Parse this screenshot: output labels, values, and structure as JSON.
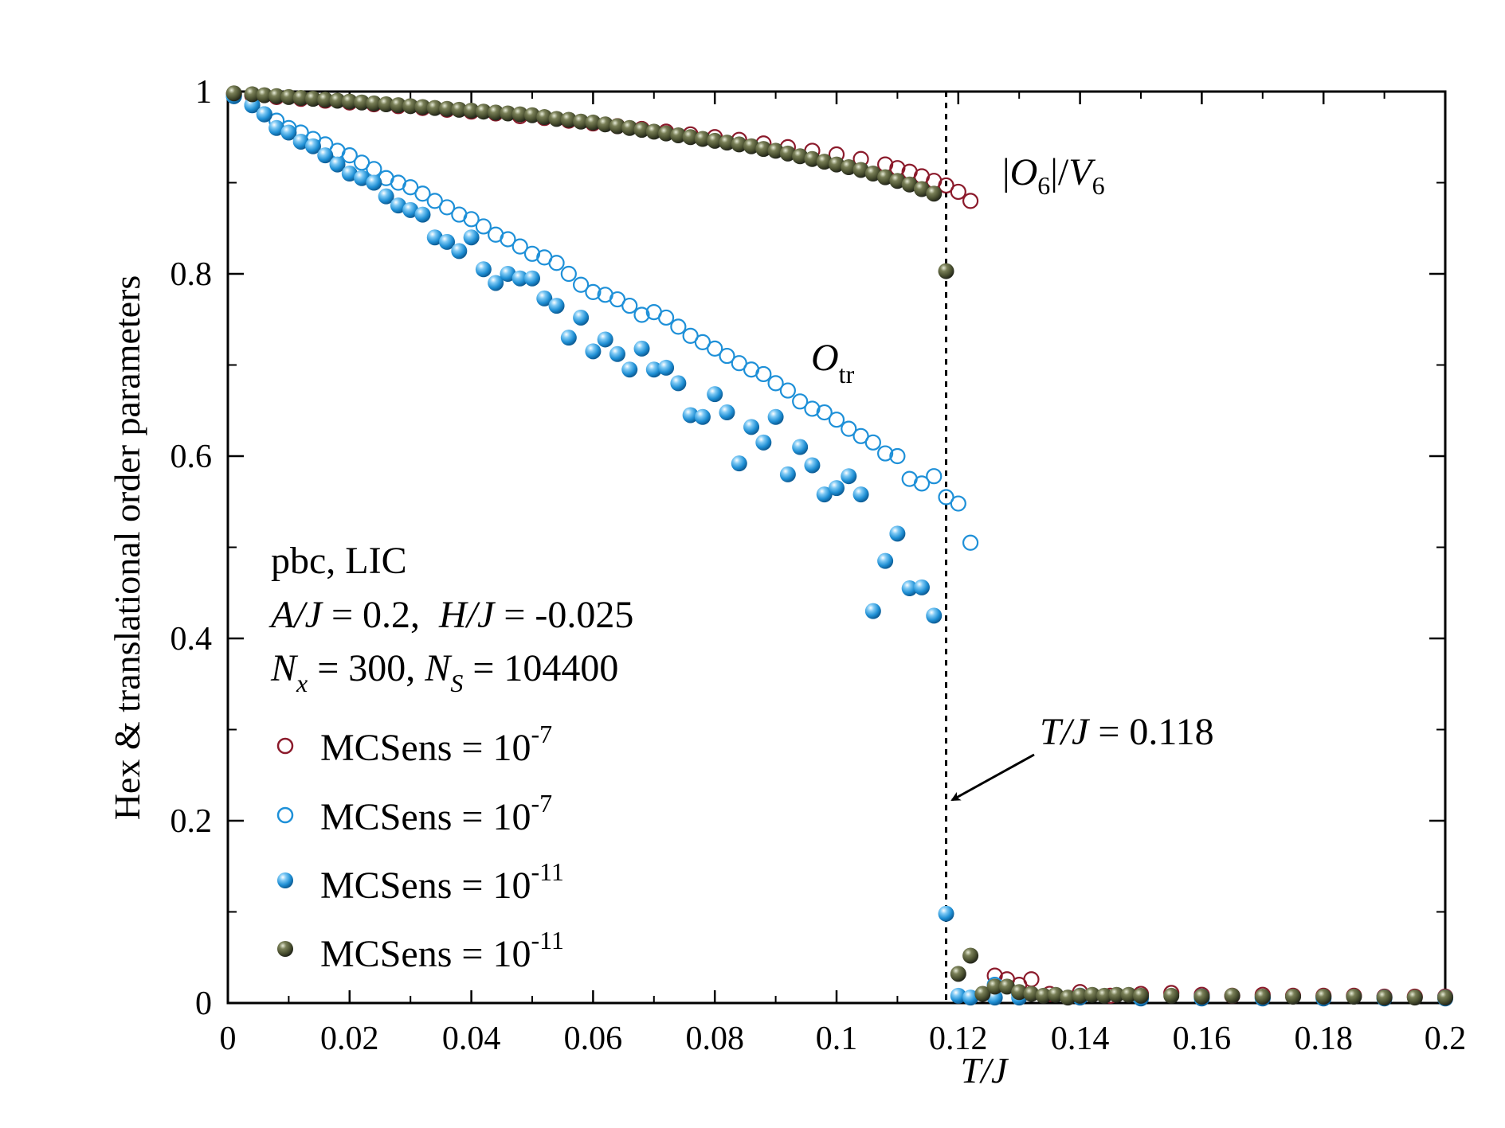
{
  "chart_data": {
    "type": "scatter",
    "xlabel": "T/J",
    "ylabel": "Hex & translational order parameters",
    "xlim": [
      0,
      0.2
    ],
    "ylim": [
      0,
      1
    ],
    "xticks": [
      {
        "v": 0,
        "label": "0"
      },
      {
        "v": 0.02,
        "label": "0.02"
      },
      {
        "v": 0.04,
        "label": "0.04"
      },
      {
        "v": 0.06,
        "label": "0.06"
      },
      {
        "v": 0.08,
        "label": "0.08"
      },
      {
        "v": 0.1,
        "label": "0.1"
      },
      {
        "v": 0.12,
        "label": "0.12"
      },
      {
        "v": 0.14,
        "label": "0.14"
      },
      {
        "v": 0.16,
        "label": "0.16"
      },
      {
        "v": 0.18,
        "label": "0.18"
      },
      {
        "v": 0.2,
        "label": "0.2"
      }
    ],
    "yticks": [
      {
        "v": 0,
        "label": "0"
      },
      {
        "v": 0.2,
        "label": "0.2"
      },
      {
        "v": 0.4,
        "label": "0.4"
      },
      {
        "v": 0.6,
        "label": "0.6"
      },
      {
        "v": 0.8,
        "label": "0.8"
      },
      {
        "v": 1,
        "label": "1"
      }
    ],
    "info_lines": {
      "line1": "pbc, LIC",
      "a_j": "A/J",
      "a_val": " = 0.2,  ",
      "h_j": "H/J",
      "h_val": " = -0.025",
      "nx": "N",
      "nx_sub": "x",
      "nx_val": " = 300, ",
      "ns": "N",
      "ns_sub": "S",
      "ns_val": " = 104400"
    },
    "annotations": {
      "o6_open": "|",
      "o6_O": "O",
      "o6_sub": "6",
      "o6_close": "|/",
      "o6_V": "V",
      "o6_vsub": "6",
      "otr_O": "O",
      "otr_sub": "tr",
      "tc_label": "T/J",
      "tc_value": " = 0.118",
      "tc": 0.118
    },
    "colors": {
      "hex_open": "#8b1a2b",
      "tr_open": "#1e90d8",
      "tr_fill": "#2f9fe0",
      "hex_fill": "#4a5030"
    },
    "series": [
      {
        "name": "MCSens = 10-7 (|O6|/V6)",
        "legend_base": "MCSens = 10",
        "legend_exp": "-7",
        "marker": "open",
        "color_key": "hex_open",
        "x": [
          0.001,
          0.004,
          0.008,
          0.012,
          0.016,
          0.02,
          0.024,
          0.028,
          0.032,
          0.036,
          0.04,
          0.044,
          0.048,
          0.052,
          0.056,
          0.06,
          0.064,
          0.068,
          0.072,
          0.076,
          0.08,
          0.084,
          0.088,
          0.092,
          0.096,
          0.1,
          0.104,
          0.108,
          0.11,
          0.112,
          0.114,
          0.116,
          0.118,
          0.12,
          0.122,
          0.126,
          0.128,
          0.13,
          0.132,
          0.135,
          0.14,
          0.145,
          0.15,
          0.155,
          0.16,
          0.165,
          0.17,
          0.175,
          0.18,
          0.185,
          0.19,
          0.195,
          0.2
        ],
        "y": [
          0.997,
          0.996,
          0.994,
          0.992,
          0.99,
          0.988,
          0.986,
          0.984,
          0.982,
          0.98,
          0.978,
          0.976,
          0.973,
          0.971,
          0.968,
          0.965,
          0.962,
          0.959,
          0.956,
          0.953,
          0.95,
          0.947,
          0.943,
          0.939,
          0.935,
          0.931,
          0.926,
          0.92,
          0.916,
          0.912,
          0.907,
          0.902,
          0.897,
          0.89,
          0.88,
          0.03,
          0.026,
          0.02,
          0.026,
          0.01,
          0.012,
          0.008,
          0.01,
          0.011,
          0.009,
          0.008,
          0.009,
          0.008,
          0.008,
          0.008,
          0.007,
          0.007,
          0.007
        ]
      },
      {
        "name": "MCSens = 10-7 (Otr)",
        "legend_base": "MCSens = 10",
        "legend_exp": "-7",
        "marker": "open",
        "color_key": "tr_open",
        "x": [
          0.001,
          0.004,
          0.006,
          0.008,
          0.01,
          0.012,
          0.014,
          0.016,
          0.018,
          0.02,
          0.022,
          0.024,
          0.026,
          0.028,
          0.03,
          0.032,
          0.034,
          0.036,
          0.038,
          0.04,
          0.042,
          0.044,
          0.046,
          0.048,
          0.05,
          0.052,
          0.054,
          0.056,
          0.058,
          0.06,
          0.062,
          0.064,
          0.066,
          0.068,
          0.07,
          0.072,
          0.074,
          0.076,
          0.078,
          0.08,
          0.082,
          0.084,
          0.086,
          0.088,
          0.09,
          0.092,
          0.094,
          0.096,
          0.098,
          0.1,
          0.102,
          0.104,
          0.106,
          0.108,
          0.11,
          0.112,
          0.114,
          0.116,
          0.118,
          0.12,
          0.122,
          0.126,
          0.13,
          0.14,
          0.15,
          0.16,
          0.17,
          0.18,
          0.19,
          0.2
        ],
        "y": [
          0.995,
          0.985,
          0.975,
          0.968,
          0.96,
          0.955,
          0.948,
          0.942,
          0.935,
          0.93,
          0.922,
          0.915,
          0.905,
          0.9,
          0.895,
          0.888,
          0.88,
          0.873,
          0.865,
          0.86,
          0.852,
          0.843,
          0.838,
          0.83,
          0.822,
          0.818,
          0.812,
          0.8,
          0.788,
          0.78,
          0.777,
          0.772,
          0.765,
          0.755,
          0.758,
          0.752,
          0.742,
          0.732,
          0.725,
          0.718,
          0.71,
          0.702,
          0.695,
          0.69,
          0.68,
          0.672,
          0.66,
          0.652,
          0.648,
          0.64,
          0.63,
          0.622,
          0.615,
          0.603,
          0.6,
          0.575,
          0.57,
          0.578,
          0.555,
          0.548,
          0.505,
          0.02,
          0.01,
          0.008,
          0.007,
          0.007,
          0.006,
          0.006,
          0.006,
          0.006
        ]
      },
      {
        "name": "MCSens = 10-11 (Otr)",
        "legend_base": "MCSens = 10",
        "legend_exp": "-11",
        "marker": "filled",
        "color_key": "tr_fill",
        "x": [
          0.001,
          0.004,
          0.006,
          0.008,
          0.01,
          0.012,
          0.014,
          0.016,
          0.018,
          0.02,
          0.022,
          0.024,
          0.026,
          0.028,
          0.03,
          0.032,
          0.034,
          0.036,
          0.038,
          0.04,
          0.042,
          0.044,
          0.046,
          0.048,
          0.05,
          0.052,
          0.054,
          0.056,
          0.058,
          0.06,
          0.062,
          0.064,
          0.066,
          0.068,
          0.07,
          0.072,
          0.074,
          0.076,
          0.078,
          0.08,
          0.082,
          0.084,
          0.086,
          0.088,
          0.09,
          0.092,
          0.094,
          0.096,
          0.098,
          0.1,
          0.102,
          0.104,
          0.106,
          0.108,
          0.11,
          0.112,
          0.114,
          0.116,
          0.118,
          0.12,
          0.122,
          0.126,
          0.13,
          0.14,
          0.15,
          0.16,
          0.17,
          0.18,
          0.19,
          0.2
        ],
        "y": [
          0.995,
          0.985,
          0.975,
          0.96,
          0.955,
          0.945,
          0.94,
          0.93,
          0.92,
          0.91,
          0.905,
          0.9,
          0.885,
          0.875,
          0.87,
          0.865,
          0.84,
          0.835,
          0.825,
          0.84,
          0.805,
          0.79,
          0.8,
          0.795,
          0.795,
          0.773,
          0.765,
          0.73,
          0.752,
          0.715,
          0.728,
          0.712,
          0.695,
          0.718,
          0.695,
          0.697,
          0.68,
          0.645,
          0.643,
          0.668,
          0.648,
          0.592,
          0.632,
          0.615,
          0.643,
          0.58,
          0.61,
          0.59,
          0.558,
          0.565,
          0.578,
          0.558,
          0.43,
          0.485,
          0.515,
          0.455,
          0.456,
          0.425,
          0.098,
          0.008,
          0.006,
          0.006,
          0.006,
          0.006,
          0.005,
          0.005,
          0.005,
          0.005,
          0.005,
          0.005
        ]
      },
      {
        "name": "MCSens = 10-11 (|O6|/V6)",
        "legend_base": "MCSens = 10",
        "legend_exp": "-11",
        "marker": "filled",
        "color_key": "hex_fill",
        "x": [
          0.001,
          0.004,
          0.006,
          0.008,
          0.01,
          0.012,
          0.014,
          0.016,
          0.018,
          0.02,
          0.022,
          0.024,
          0.026,
          0.028,
          0.03,
          0.032,
          0.034,
          0.036,
          0.038,
          0.04,
          0.042,
          0.044,
          0.046,
          0.048,
          0.05,
          0.052,
          0.054,
          0.056,
          0.058,
          0.06,
          0.062,
          0.064,
          0.066,
          0.068,
          0.07,
          0.072,
          0.074,
          0.076,
          0.078,
          0.08,
          0.082,
          0.084,
          0.086,
          0.088,
          0.09,
          0.092,
          0.094,
          0.096,
          0.098,
          0.1,
          0.102,
          0.104,
          0.106,
          0.108,
          0.11,
          0.112,
          0.114,
          0.116,
          0.118,
          0.12,
          0.122,
          0.124,
          0.126,
          0.128,
          0.13,
          0.132,
          0.134,
          0.136,
          0.138,
          0.14,
          0.142,
          0.144,
          0.146,
          0.148,
          0.15,
          0.155,
          0.16,
          0.165,
          0.17,
          0.175,
          0.18,
          0.185,
          0.19,
          0.195,
          0.2
        ],
        "y": [
          0.998,
          0.997,
          0.996,
          0.995,
          0.994,
          0.993,
          0.992,
          0.991,
          0.99,
          0.989,
          0.988,
          0.987,
          0.986,
          0.985,
          0.984,
          0.983,
          0.982,
          0.981,
          0.98,
          0.979,
          0.978,
          0.977,
          0.976,
          0.975,
          0.974,
          0.972,
          0.97,
          0.969,
          0.967,
          0.966,
          0.964,
          0.962,
          0.96,
          0.958,
          0.956,
          0.954,
          0.952,
          0.95,
          0.948,
          0.946,
          0.944,
          0.942,
          0.94,
          0.937,
          0.935,
          0.932,
          0.929,
          0.926,
          0.923,
          0.92,
          0.917,
          0.914,
          0.91,
          0.906,
          0.902,
          0.898,
          0.893,
          0.888,
          0.803,
          0.032,
          0.052,
          0.01,
          0.018,
          0.018,
          0.012,
          0.01,
          0.008,
          0.009,
          0.006,
          0.008,
          0.009,
          0.008,
          0.009,
          0.009,
          0.008,
          0.008,
          0.007,
          0.008,
          0.007,
          0.007,
          0.007,
          0.007,
          0.006,
          0.006,
          0.006
        ]
      }
    ]
  }
}
